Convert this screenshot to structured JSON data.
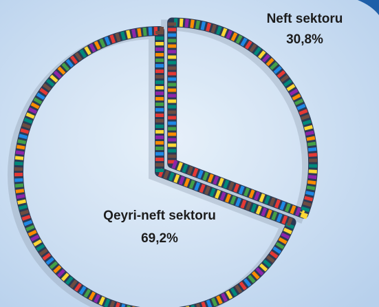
{
  "chart_data": {
    "type": "pie",
    "categories": [
      "Neft sektoru",
      "Qeyri-neft sektoru"
    ],
    "values": [
      30.8,
      69.2
    ],
    "value_labels": [
      "30,8%",
      "69,2%"
    ]
  }
}
